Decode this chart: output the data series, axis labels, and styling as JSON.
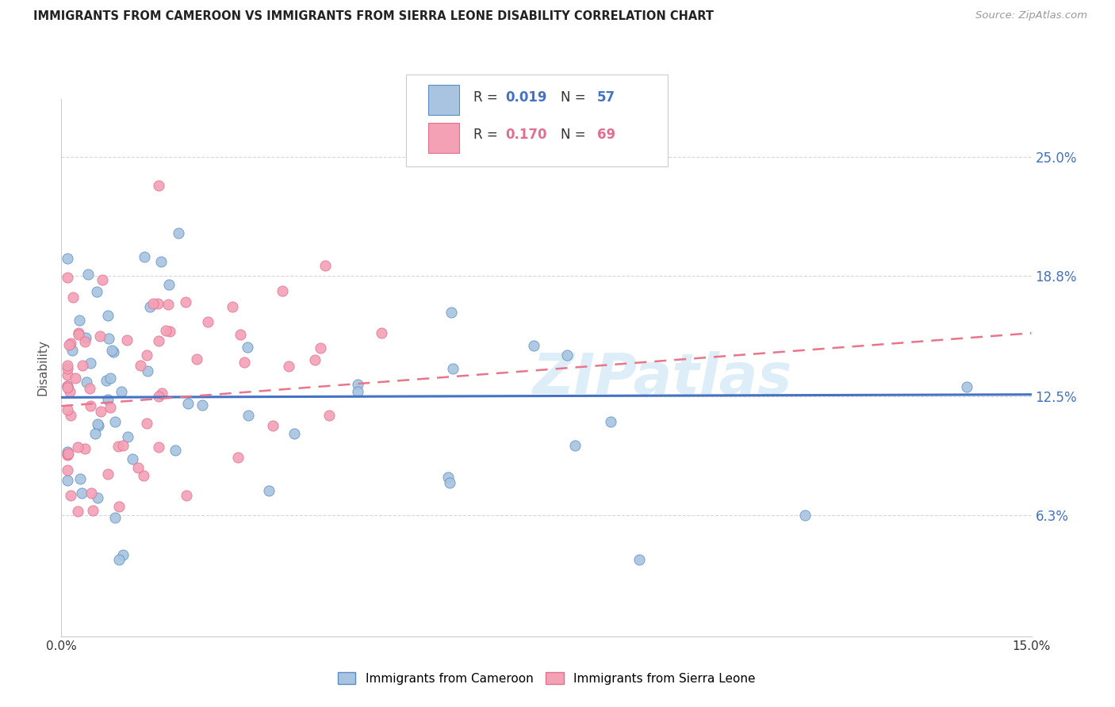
{
  "title": "IMMIGRANTS FROM CAMEROON VS IMMIGRANTS FROM SIERRA LEONE DISABILITY CORRELATION CHART",
  "source": "Source: ZipAtlas.com",
  "ylabel": "Disability",
  "ytick_labels": [
    "6.3%",
    "12.5%",
    "18.8%",
    "25.0%"
  ],
  "ytick_values": [
    0.063,
    0.125,
    0.188,
    0.25
  ],
  "xlim": [
    0.0,
    0.15
  ],
  "ylim": [
    0.0,
    0.28
  ],
  "legend_r1": "0.019",
  "legend_n1": "57",
  "legend_r2": "0.170",
  "legend_n2": "69",
  "color_cameroon_fill": "#a8c4e0",
  "color_cameroon_edge": "#5b8ec4",
  "color_sierra_leone_fill": "#f4a0b5",
  "color_sierra_leone_edge": "#e07090",
  "color_cameroon_line": "#4472c4",
  "color_sierra_leone_line": "#e8758a",
  "label_cameroon": "Immigrants from Cameroon",
  "label_sierra_leone": "Immigrants from Sierra Leone",
  "watermark_text": "ZIPatlas",
  "watermark_color": "#d8e8f0",
  "cam_line_y0": 0.1245,
  "cam_line_y1": 0.126,
  "sl_line_y0": 0.12,
  "sl_line_y1": 0.158
}
